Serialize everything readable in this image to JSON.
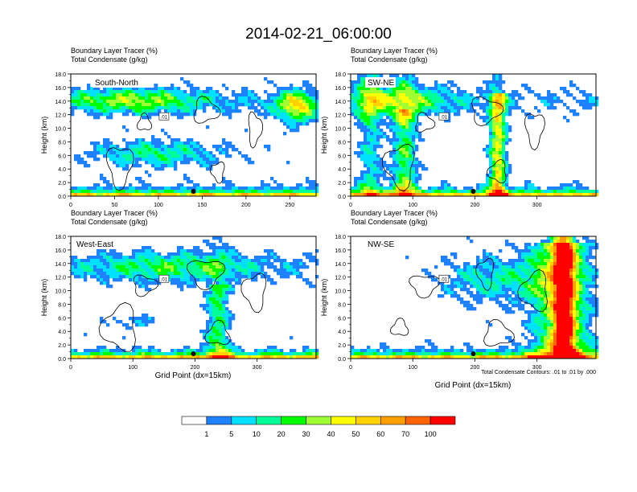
{
  "title": "2014-02-21_06:00:00",
  "panel_line1": "Boundary Layer Tracer   (%)",
  "panel_line2": "Total Condensate   (g/kg)",
  "ylabel": "Height (km)",
  "xlabel": "Grid Point (dx=15km)",
  "contour_note": "Total Condensate Contours: .01 to .01 by .000",
  "colors": {
    "bins": [
      "#ffffff",
      "#1e82ff",
      "#00e1ff",
      "#00ff96",
      "#00ff00",
      "#a0ff32",
      "#ffff00",
      "#ffd200",
      "#ffa000",
      "#ff6400",
      "#ff0000"
    ],
    "contour": "#000000"
  },
  "chart_data": [
    {
      "type": "heatmap",
      "label": "South-North",
      "ylim": [
        0,
        18
      ],
      "yticks": [
        "0.0",
        "2.0",
        "4.0",
        "6.0",
        "8.0",
        "10.0",
        "12.0",
        "14.0",
        "16.0",
        "18.0"
      ],
      "xlim": [
        0,
        280
      ],
      "xticks": [
        0,
        50,
        100,
        150,
        200,
        250
      ],
      "contour_label": ".01"
    },
    {
      "type": "heatmap",
      "label": "SW-NE",
      "ylim": [
        0,
        18
      ],
      "yticks": [
        "0.0",
        "2.0",
        "4.0",
        "6.0",
        "8.0",
        "10.0",
        "12.0",
        "14.0",
        "16.0",
        "18.0"
      ],
      "xlim": [
        0,
        395
      ],
      "xticks": [
        0,
        100,
        200,
        300
      ],
      "contour_label": ".01"
    },
    {
      "type": "heatmap",
      "label": "West-East",
      "ylim": [
        0,
        18
      ],
      "yticks": [
        "0.0",
        "2.0",
        "4.0",
        "6.0",
        "8.0",
        "10.0",
        "12.0",
        "14.0",
        "16.0",
        "18.0"
      ],
      "xlim": [
        0,
        395
      ],
      "xticks": [
        0,
        100,
        200,
        300
      ],
      "contour_label": ".01"
    },
    {
      "type": "heatmap",
      "label": "NW-SE",
      "ylim": [
        0,
        18
      ],
      "yticks": [
        "0.0",
        "2.0",
        "4.0",
        "6.0",
        "8.0",
        "10.0",
        "12.0",
        "14.0",
        "16.0",
        "18.0"
      ],
      "xlim": [
        0,
        395
      ],
      "xticks": [
        0,
        100,
        200,
        300
      ],
      "contour_label": ".01"
    }
  ],
  "colorbar": {
    "labels": [
      "1",
      "5",
      "10",
      "20",
      "30",
      "40",
      "50",
      "60",
      "70",
      "100"
    ]
  }
}
